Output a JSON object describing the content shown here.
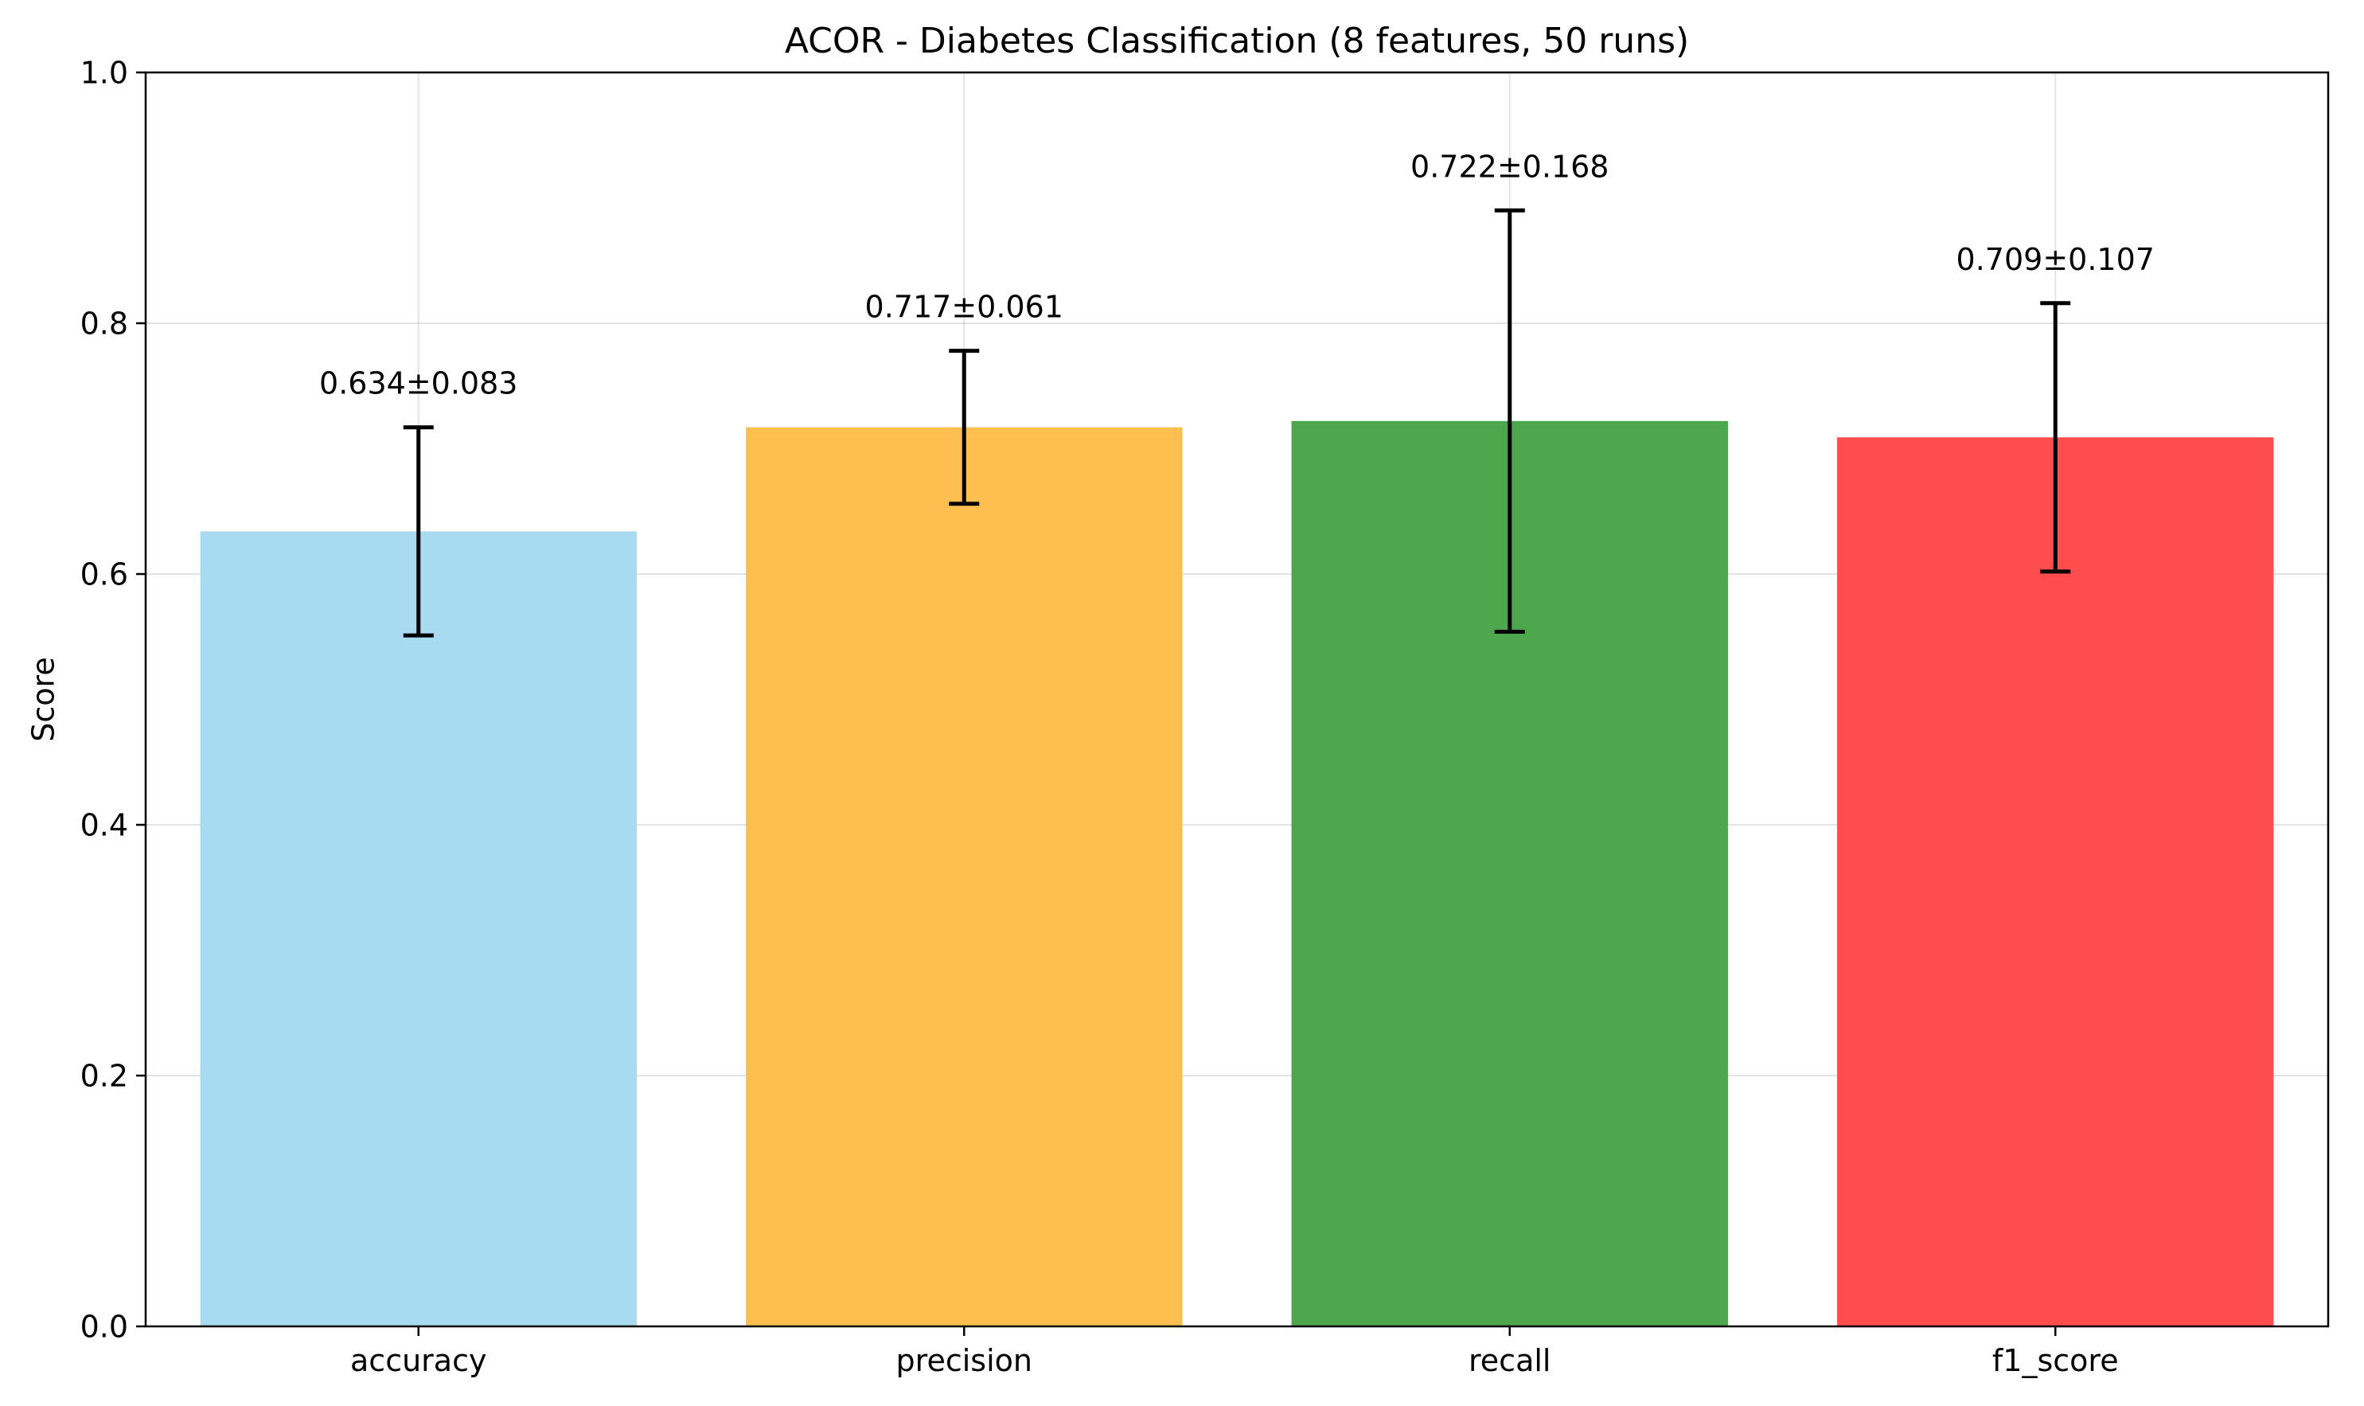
{
  "chart_data": {
    "type": "bar",
    "title": "ACOR - Diabetes Classification (8 features, 50 runs)",
    "xlabel": "",
    "ylabel": "Score",
    "ylim": [
      0,
      1
    ],
    "yticks": [
      "0.0",
      "0.2",
      "0.4",
      "0.6",
      "0.8",
      "1.0"
    ],
    "ytick_values": [
      0,
      0.2,
      0.4,
      0.6,
      0.8,
      1.0
    ],
    "grid": true,
    "categories": [
      "accuracy",
      "precision",
      "recall",
      "f1_score"
    ],
    "values": [
      0.634,
      0.717,
      0.722,
      0.709
    ],
    "errors": [
      0.083,
      0.061,
      0.168,
      0.107
    ],
    "data_labels": [
      "0.634±0.083",
      "0.717±0.061",
      "0.722±0.168",
      "0.709±0.107"
    ],
    "colors": [
      "#a8dbef",
      "#fdbf4f",
      "#4ca64c",
      "#ff4d4d"
    ]
  }
}
